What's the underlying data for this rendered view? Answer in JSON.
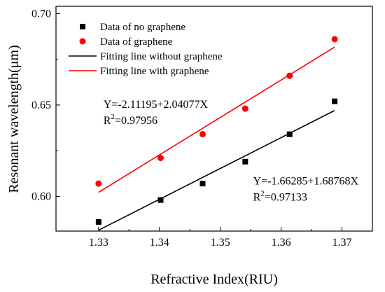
{
  "chart_data": {
    "type": "scatter",
    "xlabel": "Refractive Index(RIU)",
    "ylabel": "Resonant wavelength(μm)",
    "xlim": [
      1.323,
      1.375
    ],
    "ylim": [
      0.581,
      0.704
    ],
    "xticks": [
      1.33,
      1.34,
      1.35,
      1.36,
      1.37
    ],
    "xtick_labels": [
      "1.33",
      "1.34",
      "1.35",
      "1.36",
      "1.37"
    ],
    "yticks": [
      0.6,
      0.65,
      0.7
    ],
    "ytick_labels": [
      "0.60",
      "0.65",
      "0.70"
    ],
    "grid": false,
    "legend_position": "top-left",
    "series": [
      {
        "name": "Data of no graphene",
        "kind": "points",
        "marker": "square",
        "color": "#000000",
        "x": [
          1.33,
          1.3402,
          1.3471,
          1.3541,
          1.3614,
          1.3688
        ],
        "y": [
          0.586,
          0.598,
          0.607,
          0.619,
          0.634,
          0.652
        ]
      },
      {
        "name": "Data of graphene",
        "kind": "points",
        "marker": "circle",
        "color": "#ff0000",
        "x": [
          1.33,
          1.3402,
          1.3471,
          1.3541,
          1.3614,
          1.3688
        ],
        "y": [
          0.607,
          0.621,
          0.634,
          0.648,
          0.666,
          0.686
        ]
      },
      {
        "name": "Fitting line without graphene",
        "kind": "line",
        "color": "#000000",
        "x": [
          1.33,
          1.3688
        ],
        "y": [
          0.5815,
          0.647
        ]
      },
      {
        "name": "Fitting line with graphene",
        "kind": "line",
        "color": "#ff0000",
        "x": [
          1.33,
          1.3688
        ],
        "y": [
          0.6022,
          0.6817
        ]
      }
    ],
    "annotations": [
      {
        "equation": "Y=-2.11195+2.04077X",
        "r2_prefix": "R",
        "r2_sup": "2",
        "r2_value": "=0.97956",
        "x": 1.3308,
        "y": 0.6485
      },
      {
        "equation": "Y=-1.66285+1.68768X",
        "r2_prefix": "R",
        "r2_sup": "2",
        "r2_value": "=0.97133",
        "x": 1.3554,
        "y": 0.6065
      }
    ]
  }
}
